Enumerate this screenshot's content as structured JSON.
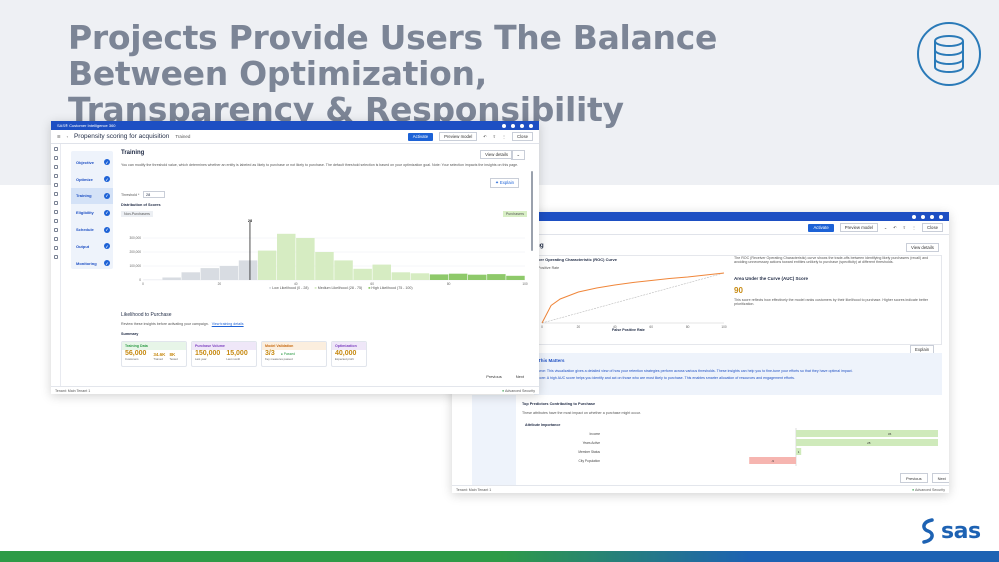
{
  "heading": {
    "line1": "Projects Provide Users The Balance Between Optimization,",
    "line2": "Transparency & Responsibility"
  },
  "brand": {
    "logo_text": "sas",
    "accent": "#1d62b3",
    "green": "#2e9b47"
  },
  "window1": {
    "app_name": "SAS® Customer Intelligence 360",
    "page_title": "Propensity scoring for acquisition",
    "status": "Trained",
    "activate_label": "Activate",
    "preview_label": "Preview model",
    "close_label": "Close",
    "steps": [
      {
        "label": "Objective"
      },
      {
        "label": "Optimize"
      },
      {
        "label": "Training"
      },
      {
        "label": "Eligibility"
      },
      {
        "label": "Schedule"
      },
      {
        "label": "Output"
      },
      {
        "label": "Monitoring"
      }
    ],
    "active_step": "Training",
    "section_title": "Training",
    "view_details_label": "View details",
    "description": "You can modify the threshold value, which determines whether an entity is labeled as likely to purchase or not likely to purchase. The default threshold selection is based on your optimization goal. Note: Your selection impacts the insights on this page.",
    "explain_label": "Explain",
    "threshold_label": "Threshold *",
    "threshold_value": "28",
    "distribution_title": "Distribution of Scores",
    "non_purchasers_label": "Non-Purchasers",
    "purchasers_label": "Purchasers",
    "likelihood_title": "Likelihood to Purchase",
    "likelihood_desc": "Review these insights before activating your campaign.",
    "training_link": "View training details",
    "summary_label": "Summary",
    "cards": [
      {
        "title": "Training Data",
        "value": "56,000",
        "sub": "Customers",
        "extra1": "34.6K",
        "extra1_lbl": "Trained",
        "extra2": "8K",
        "extra2_lbl": "Tested",
        "color": "#2e9b47",
        "bg": "#e7f5e8"
      },
      {
        "title": "Purchase Volume",
        "value": "150,000",
        "sub": "Last year",
        "extra1": "15,000",
        "extra1_lbl": "Last month",
        "color": "#7b3fbf",
        "bg": "#efe7f8"
      },
      {
        "title": "Model Validation",
        "value": "3/3",
        "sub": "Key measures passed",
        "extra1": "Passed",
        "color": "#c76a12",
        "bg": "#fbeede"
      },
      {
        "title": "Optimization",
        "value": "40,000",
        "sub": "Expected profit",
        "color": "#7b3fbf",
        "bg": "#efe7f8"
      }
    ],
    "previous_label": "Previous",
    "next_label": "Next",
    "tenant_label": "Tenant: Main Tenant 1",
    "security_label": "Advanced Security"
  },
  "window2": {
    "page_title_fragment": "acquisition",
    "status": "Trained",
    "activate_label": "Activate",
    "preview_label": "Preview model",
    "close_label": "Close",
    "section_title_fragment": "ing",
    "view_details_label": "View details",
    "roc_title_fragment": "ver Operating Characteristic (ROC) Curve",
    "roc_y_label_fragment": "Positive Rate",
    "roc_x_label": "False Positive Rate",
    "roc_description": "The ROC (Receiver Operating Characteristic) curve shows the trade-offs between identifying likely purchasers (recall) and avoiding unnecessary actions toward entities unlikely to purchase (specificity) at different thresholds.",
    "auc_title": "Area Under the Curve (AUC) Score",
    "auc_value": "90",
    "auc_description": "This score reflects how effectively the model ranks customers by their likelihood to purchase. Higher scores indicate better prioritization.",
    "explain_label": "Explain",
    "matters_title_fragment": "This Matters",
    "matters_line1": "urve: This visualization gives a detailed view of how your retention strategies perform across various thresholds. These insights can help you to fine-tune your efforts so that they have optimal impact.",
    "matters_line2": "core: A high AUC score helps you identify and act on those who are most likely to purchase. This enables smarter allocation of resources and engagement efforts.",
    "predictors_title": "Top Predictors Contributing to Purchase",
    "predictors_desc": "These attributes have the most impact on whether a purchase might occur.",
    "attr_label": "Attribute Importance",
    "previous_label": "Previous",
    "next_label": "Next",
    "tenant_label": "Tenant: Main Tenant 1",
    "security_label": "Advanced Security"
  },
  "chart_data": [
    {
      "type": "bar",
      "title": "Distribution of Scores",
      "x": [
        0,
        5,
        10,
        15,
        20,
        25,
        30,
        35,
        40,
        45,
        50,
        55,
        60,
        65,
        70,
        75,
        80,
        85,
        90,
        95
      ],
      "categories_ticks": [
        "0",
        "20",
        "40",
        "60",
        "80",
        "100"
      ],
      "values": [
        2000,
        18000,
        55000,
        85000,
        100000,
        140000,
        210000,
        330000,
        300000,
        200000,
        140000,
        80000,
        110000,
        55000,
        48000,
        40000,
        45000,
        38000,
        42000,
        30000
      ],
      "ylim": [
        0,
        400000
      ],
      "yticks": [
        "0",
        "100,000",
        "200,000",
        "300,000"
      ],
      "threshold": 28,
      "series": [
        {
          "name": "Low Likelihood (0 - 28)"
        },
        {
          "name": "Medium Likelihood (28 - 75)"
        },
        {
          "name": "High Likelihood (75 - 100)"
        }
      ]
    },
    {
      "type": "line",
      "title": "ver Operating Characteristic (ROC) Curve",
      "x": [
        0,
        5,
        10,
        20,
        30,
        40,
        50,
        60,
        70,
        80,
        90,
        100
      ],
      "values": [
        0,
        35,
        48,
        62,
        70,
        76,
        81,
        85,
        89,
        92,
        96,
        100
      ],
      "xticks": [
        "0",
        "20",
        "40",
        "60",
        "80",
        "100"
      ],
      "xlabel": "False Positive Rate"
    },
    {
      "type": "bar",
      "title": "Attribute Importance",
      "categories": [
        "Income",
        "Years Active",
        "Member Status",
        "City Population"
      ],
      "values": [
        36,
        28,
        1,
        -9
      ],
      "labels": [
        "36",
        "28",
        "1",
        "-9"
      ]
    }
  ]
}
